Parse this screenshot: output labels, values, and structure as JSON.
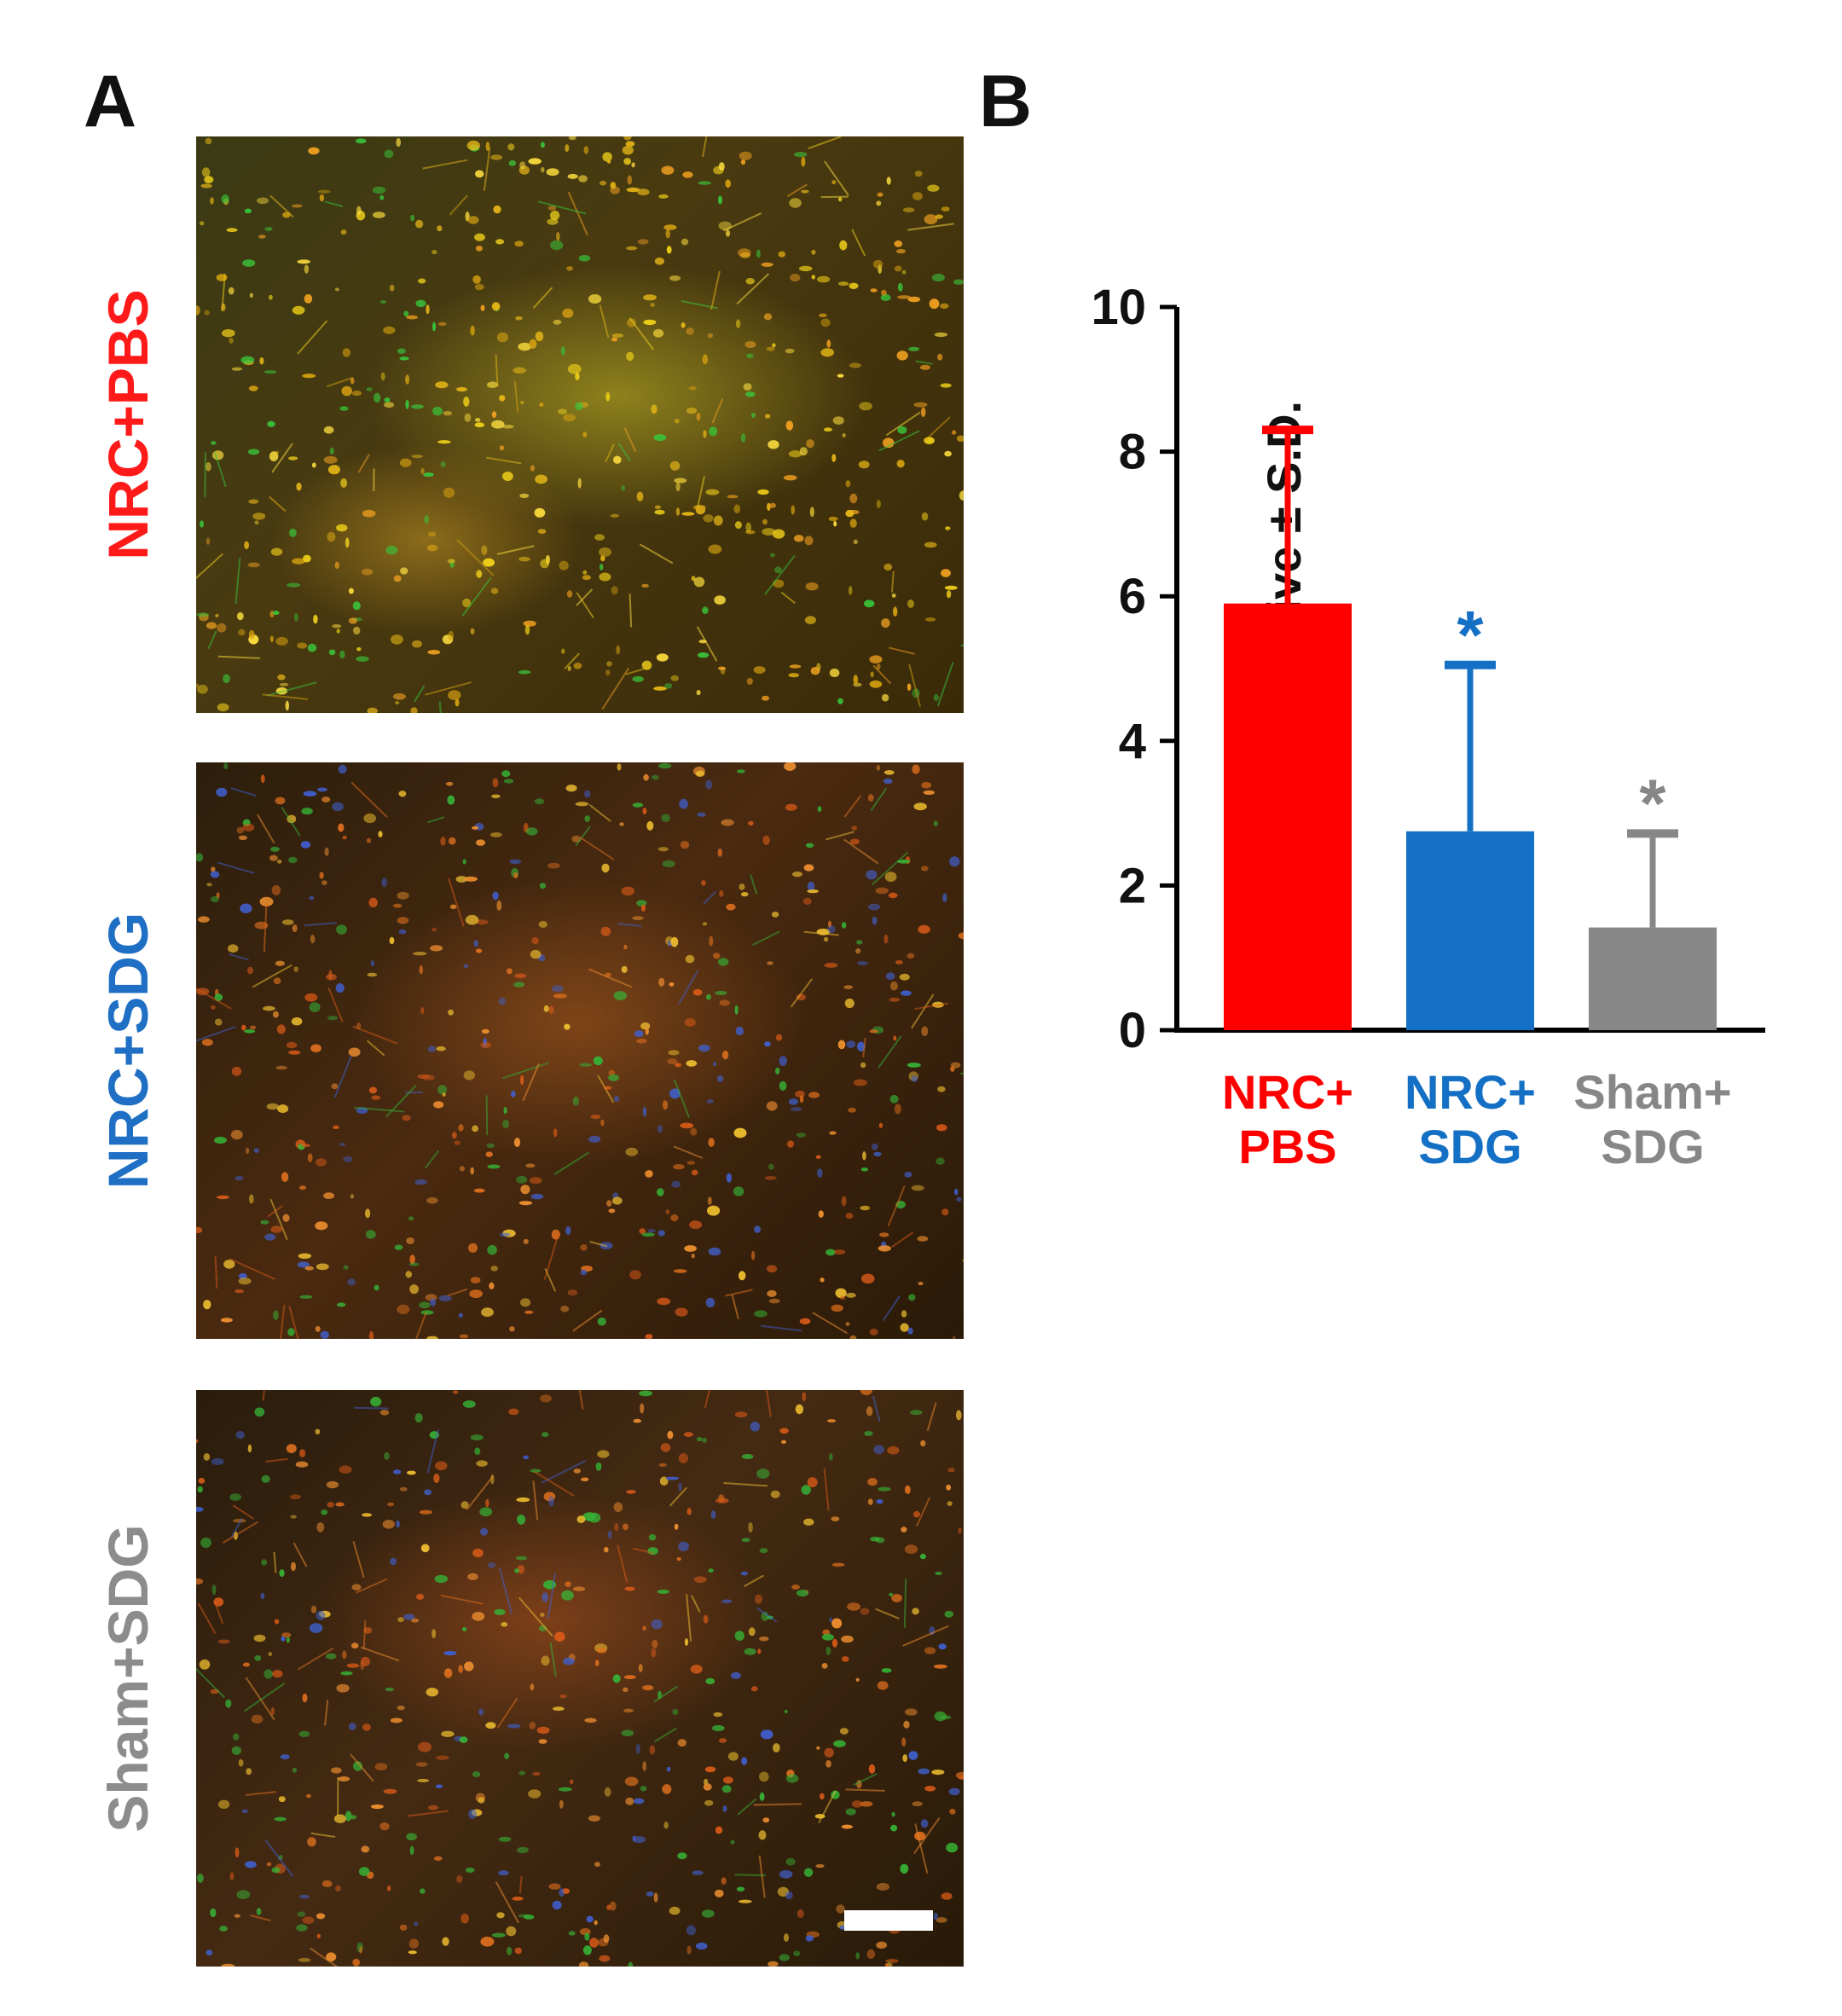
{
  "panels": {
    "a_label": "A",
    "b_label": "B"
  },
  "micrographs": [
    {
      "label": "NRC+PBS",
      "label_color": "#ff1a1a",
      "dominant_tint": "yellow-green"
    },
    {
      "label": "NRC+SDG",
      "label_color": "#1f6fc4",
      "dominant_tint": "orange-red"
    },
    {
      "label": "Sham+SDG",
      "label_color": "#8c8c8c",
      "dominant_tint": "orange-red"
    }
  ],
  "chart_data": {
    "type": "bar",
    "title": "",
    "ylabel": "percent positive ± S.D.",
    "xlabel": "",
    "ylim": [
      0,
      10
    ],
    "yticks": [
      0,
      2,
      4,
      6,
      8,
      10
    ],
    "grid": false,
    "categories": [
      {
        "line1": "NRC+",
        "line2": "PBS",
        "color": "#ff0000"
      },
      {
        "line1": "NRC+",
        "line2": "SDG",
        "color": "#1470c4"
      },
      {
        "line1": "Sham+",
        "line2": "SDG",
        "color": "#878787"
      }
    ],
    "values": [
      5.9,
      2.75,
      1.42
    ],
    "errors": [
      2.4,
      2.3,
      1.3
    ],
    "significance": [
      "",
      "*",
      "*"
    ]
  }
}
